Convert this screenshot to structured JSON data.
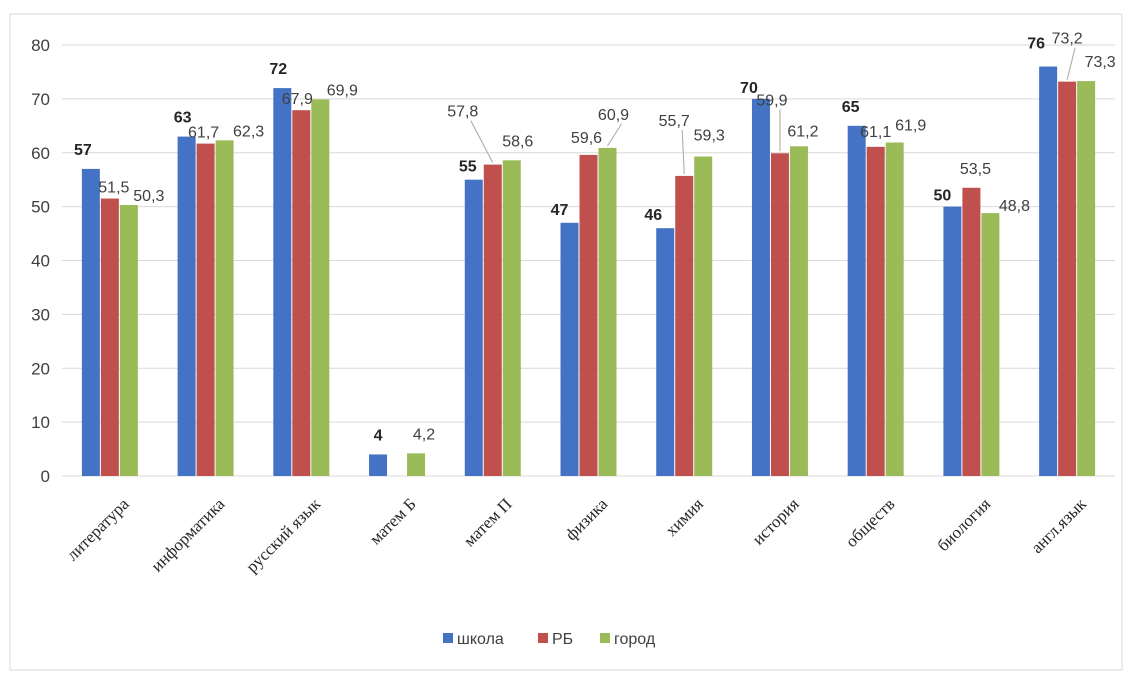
{
  "chart_data": {
    "type": "bar",
    "title": "",
    "xlabel": "",
    "ylabel": "",
    "ylim": [
      0,
      80
    ],
    "yticks": [
      0,
      10,
      20,
      30,
      40,
      50,
      60,
      70,
      80
    ],
    "grid": true,
    "legend_position": "bottom",
    "categories": [
      "литература",
      "информатика",
      "русский язык",
      "матем Б",
      "матем П",
      "физика",
      "химия",
      "история",
      "обществ",
      "биология",
      "англ.язык"
    ],
    "series": [
      {
        "name": "школа",
        "color": "#4472c4",
        "values": [
          57,
          63,
          72,
          4,
          55,
          47,
          46,
          70,
          65,
          50,
          76
        ],
        "labels": [
          "57",
          "63",
          "72",
          "4",
          "55",
          "47",
          "46",
          "70",
          "65",
          "50",
          "76"
        ]
      },
      {
        "name": "РБ",
        "color": "#c0504d",
        "values": [
          51.5,
          61.7,
          67.9,
          null,
          57.8,
          59.6,
          55.7,
          59.9,
          61.1,
          53.5,
          73.2
        ],
        "labels": [
          "51,5",
          "61,7",
          "67,9",
          "",
          "57,8",
          "59,6",
          "55,7",
          "59,9",
          "61,1",
          "53,5",
          "73,2"
        ]
      },
      {
        "name": "город",
        "color": "#9bbb59",
        "values": [
          50.3,
          62.3,
          69.9,
          4.2,
          58.6,
          60.9,
          59.3,
          61.2,
          61.9,
          48.8,
          73.3
        ],
        "labels": [
          "50,3",
          "62,3",
          "69,9",
          "4,2",
          "58,6",
          "60,9",
          "59,3",
          "61,2",
          "61,9",
          "48,8",
          "73,3"
        ]
      }
    ]
  }
}
